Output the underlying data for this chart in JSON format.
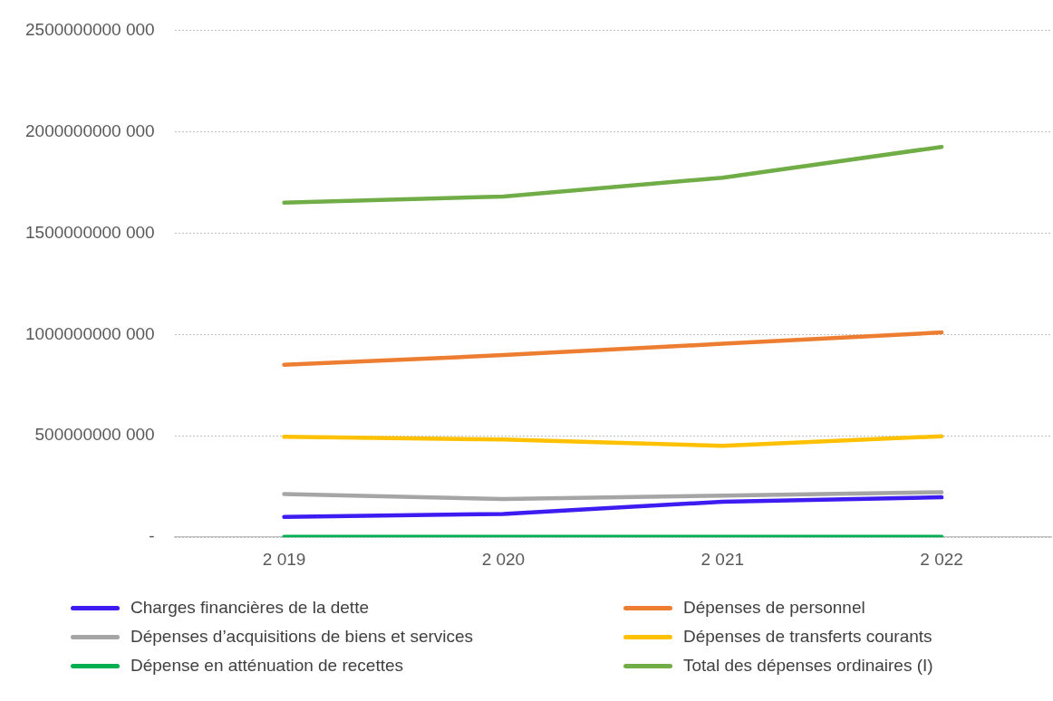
{
  "chart_data": {
    "type": "line",
    "categories": [
      "2 019",
      "2 020",
      "2 021",
      "2 022"
    ],
    "series": [
      {
        "name": "Charges financières de la dette",
        "color": "#3d1cf2",
        "values": [
          100000000000,
          115000000000,
          175000000000,
          197000000000
        ]
      },
      {
        "name": "Dépenses de personnel",
        "color": "#ed7d31",
        "values": [
          850000000000,
          898000000000,
          954000000000,
          1010000000000
        ]
      },
      {
        "name": "Dépenses d’acquisitions de biens et services",
        "color": "#a5a5a5",
        "values": [
          213000000000,
          188000000000,
          205000000000,
          222000000000
        ]
      },
      {
        "name": "Dépenses de transferts courants",
        "color": "#ffc000",
        "values": [
          495000000000,
          482000000000,
          451000000000,
          498000000000
        ]
      },
      {
        "name": "Dépense en atténuation de recettes",
        "color": "#00b050",
        "values": [
          2000000000,
          2000000000,
          2000000000,
          2000000000
        ]
      },
      {
        "name": "Total des dépenses ordinaires (I)",
        "color": "#70ad47",
        "values": [
          1650000000000,
          1680000000000,
          1773000000000,
          1925000000000
        ]
      }
    ],
    "ylim": [
      0,
      2500000000000
    ],
    "yticks": [
      {
        "value": 0,
        "label": "-"
      },
      {
        "value": 500000000000,
        "label": "500000000 000"
      },
      {
        "value": 1000000000000,
        "label": "1000000000 000"
      },
      {
        "value": 1500000000000,
        "label": "1500000000 000"
      },
      {
        "value": 2000000000000,
        "label": "2000000000 000"
      },
      {
        "value": 2500000000000,
        "label": "2500000000 000"
      }
    ],
    "grid": "y",
    "legend": "bottom",
    "marker": "none",
    "line_style": "solid"
  }
}
